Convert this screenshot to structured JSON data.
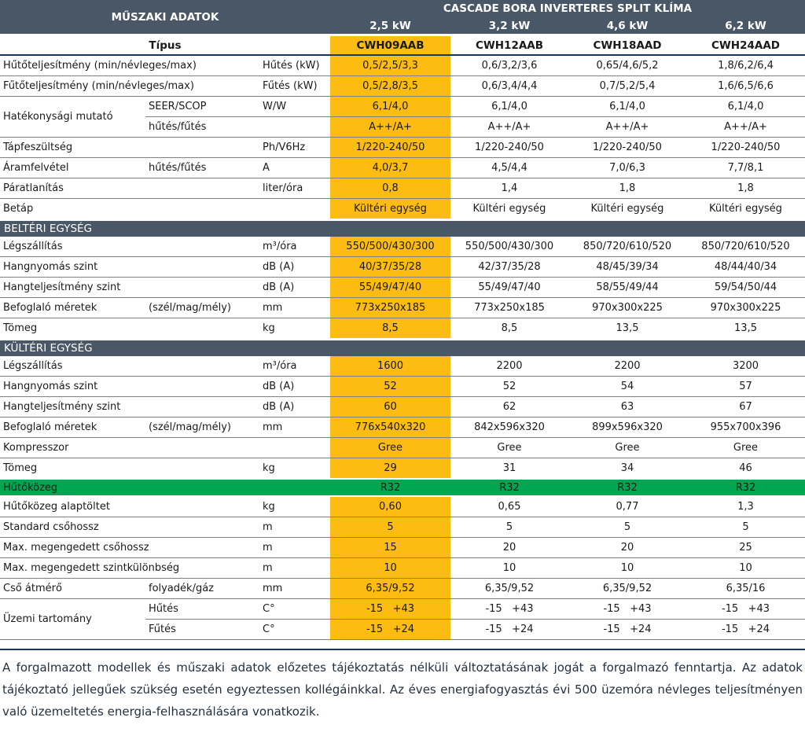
{
  "colors": {
    "header_bg": "#4a5766",
    "highlight_orange": "#fdbc11",
    "refrigerant_green": "#00a650",
    "divider_navy": "#17375d",
    "row_separator": "#808080"
  },
  "header": {
    "left_title": "MŰSZAKI ADATOK",
    "product_title": "CASCADE BORA INVERTERES SPLIT KLÍMA",
    "capacities": [
      "2,5 kW",
      "3,2 kW",
      "4,6 kW",
      "6,2 kW"
    ]
  },
  "type_row": {
    "label": "Típus",
    "models": [
      "CWH09AAB",
      "CWH12AAB",
      "CWH18AAD",
      "CWH24AAD"
    ]
  },
  "rows": [
    {
      "t": "d",
      "label": "Hűtőteljesítmény (min/névleges/max)",
      "sub": "",
      "unit": "Hűtés (kW)",
      "values": [
        "0,5/2,5/3,3",
        "0,6/3,2/3,6",
        "0,65/4,6/5,2",
        "1,8/6,2/6,4"
      ]
    },
    {
      "t": "d",
      "label": "Fűtőteljesítmény (min/névleges/max)",
      "sub": "",
      "unit": "Fűtés (kW)",
      "values": [
        "0,5/2,8/3,5",
        "0,6/3,4/4,4",
        "0,7/5,2/5,4",
        "1,6/6,5/6,6"
      ]
    },
    {
      "t": "d",
      "group": "Hatékonysági mutató",
      "group_size": 2,
      "sub": "SEER/SCOP",
      "unit": "W/W",
      "values": [
        "6,1/4,0",
        "6,1/4,0",
        "6,1/4,0",
        "6,1/4,0"
      ]
    },
    {
      "t": "d",
      "cont": true,
      "sub": "hűtés/fűtés",
      "unit": "",
      "values": [
        "A++/A+",
        "A++/A+",
        "A++/A+",
        "A++/A+"
      ]
    },
    {
      "t": "d",
      "label": "Tápfeszültség",
      "sub": "",
      "unit": "Ph/V6Hz",
      "values": [
        "1/220-240/50",
        "1/220-240/50",
        "1/220-240/50",
        "1/220-240/50"
      ]
    },
    {
      "t": "d",
      "label": "Áramfelvétel",
      "sub": "hűtés/fűtés",
      "unit": "A",
      "values": [
        "4,0/3,7",
        "4,5/4,4",
        "7,0/6,3",
        "7,7/8,1"
      ]
    },
    {
      "t": "d",
      "label": "Páratlanítás",
      "sub": "",
      "unit": "liter/óra",
      "values": [
        "0,8",
        "1,4",
        "1,8",
        "1,8"
      ]
    },
    {
      "t": "d",
      "label": "Betáp",
      "sub": "",
      "unit": "",
      "values": [
        "Kültéri egység",
        "Kültéri egység",
        "Kültéri egység",
        "Kültéri egység"
      ]
    },
    {
      "t": "s",
      "label": "BELTÉRI EGYSÉG"
    },
    {
      "t": "d",
      "label": "Légszállítás",
      "sub": "",
      "unit": "m³/óra",
      "values": [
        "550/500/430/300",
        "550/500/430/300",
        "850/720/610/520",
        "850/720/610/520"
      ]
    },
    {
      "t": "d",
      "label": "Hangnyomás szint",
      "sub": "",
      "unit": "dB (A)",
      "values": [
        "40/37/35/28",
        "42/37/35/28",
        "48/45/39/34",
        "48/44/40/34"
      ]
    },
    {
      "t": "d",
      "label": "Hangteljesítmény szint",
      "sub": "",
      "unit": "dB (A)",
      "values": [
        "55/49/47/40",
        "55/49/47/40",
        "58/55/49/44",
        "59/54/50/44"
      ]
    },
    {
      "t": "d",
      "label": "Befoglaló méretek",
      "sub": "(szél/mag/mély)",
      "unit": "mm",
      "values": [
        "773x250x185",
        "773x250x185",
        "970x300x225",
        "970x300x225"
      ]
    },
    {
      "t": "d",
      "label": "Tömeg",
      "sub": "",
      "unit": "kg",
      "values": [
        "8,5",
        "8,5",
        "13,5",
        "13,5"
      ]
    },
    {
      "t": "s",
      "label": "KÜLTÉRI EGYSÉG"
    },
    {
      "t": "d",
      "label": "Légszállítás",
      "sub": "",
      "unit": "m³/óra",
      "values": [
        "1600",
        "2200",
        "2200",
        "3200"
      ]
    },
    {
      "t": "d",
      "label": "Hangnyomás szint",
      "sub": "",
      "unit": "dB (A)",
      "values": [
        "52",
        "52",
        "54",
        "57"
      ]
    },
    {
      "t": "d",
      "label": "Hangteljesítmény szint",
      "sub": "",
      "unit": "dB (A)",
      "values": [
        "60",
        "62",
        "63",
        "67"
      ]
    },
    {
      "t": "d",
      "label": "Befoglaló méretek",
      "sub": "(szél/mag/mély)",
      "unit": "mm",
      "values": [
        "776x540x320",
        "842x596x320",
        "899x596x320",
        "955x700x396"
      ]
    },
    {
      "t": "d",
      "label": "Kompresszor",
      "sub": "",
      "unit": "",
      "values": [
        "Gree",
        "Gree",
        "Gree",
        "Gree"
      ]
    },
    {
      "t": "d",
      "label": "Tömeg",
      "sub": "",
      "unit": "kg",
      "values": [
        "29",
        "31",
        "34",
        "46"
      ]
    },
    {
      "t": "g",
      "label": "Hűtőközeg",
      "values": [
        "R32",
        "R32",
        "R32",
        "R32"
      ]
    },
    {
      "t": "d",
      "label": "Hűtőközeg alaptöltet",
      "sub": "",
      "unit": "kg",
      "values": [
        "0,60",
        "0,65",
        "0,77",
        "1,3"
      ]
    },
    {
      "t": "d",
      "label": "Standard csőhossz",
      "sub": "",
      "unit": "m",
      "values": [
        "5",
        "5",
        "5",
        "5"
      ]
    },
    {
      "t": "d",
      "label": "Max. megengedett csőhossz",
      "sub": "",
      "unit": "m",
      "values": [
        "15",
        "20",
        "20",
        "25"
      ]
    },
    {
      "t": "d",
      "label": "Max. megengedett szintkülönbség",
      "sub": "",
      "unit": "m",
      "values": [
        "10",
        "10",
        "10",
        "10"
      ]
    },
    {
      "t": "d",
      "label": "Cső átmérő",
      "sub": "folyadék/gáz",
      "unit": "mm",
      "values": [
        "6,35/9,52",
        "6,35/9,52",
        "6,35/9,52",
        "6,35/16"
      ]
    },
    {
      "t": "d",
      "group": "Üzemi tartomány",
      "group_size": 2,
      "sub": "Hűtés",
      "unit": "C°",
      "values": [
        "-15   +43",
        "-15   +43",
        "-15   +43",
        "-15   +43"
      ]
    },
    {
      "t": "d",
      "cont": true,
      "sub": "Fűtés",
      "unit": "C°",
      "values": [
        "-15   +24",
        "-15   +24",
        "-15   +24",
        "-15   +24"
      ]
    }
  ],
  "footer": {
    "text": "A forgalmazott modellek és műszaki adatok előzetes tájékoztatás nélküli változtatásának jogát a forgalmazó fenntartja. Az adatok tájékoztató jellegűek szükség esetén egyeztessen kollégáinkkal. Az éves energiafogyasztás évi 500 üzemóra névleges teljesítményen való üzemeltetés energia-felhasználására vonatkozik."
  }
}
